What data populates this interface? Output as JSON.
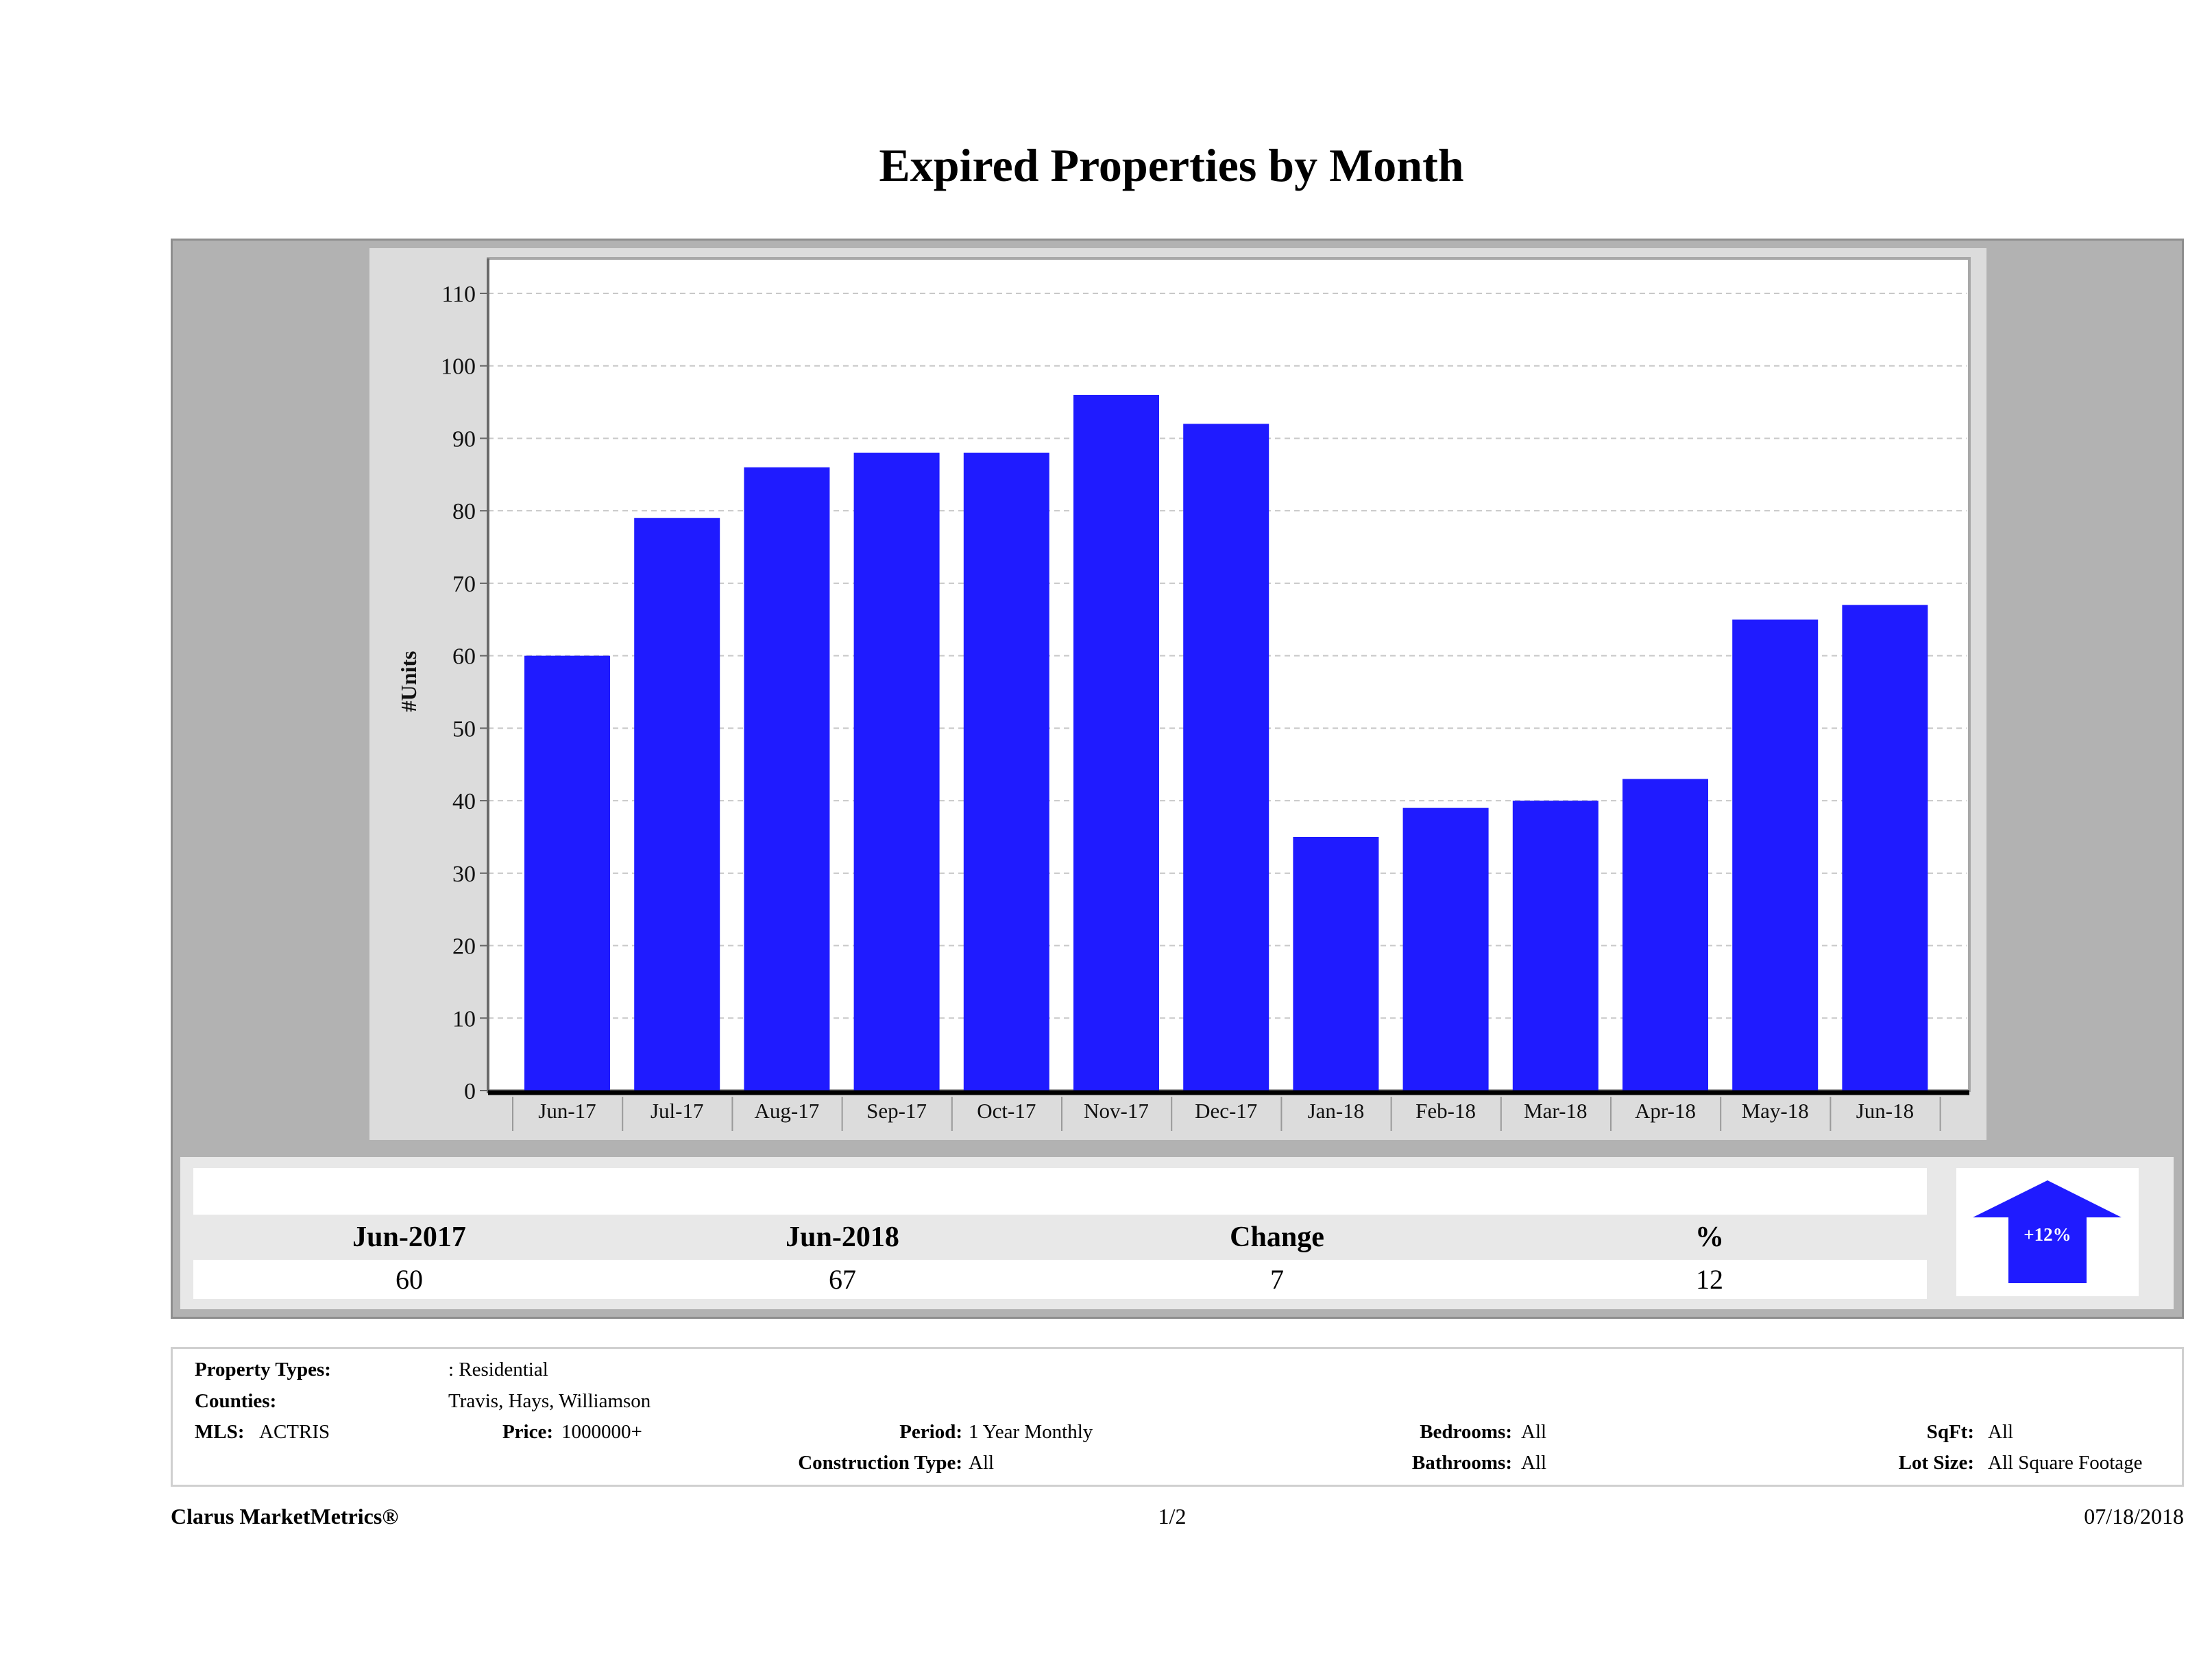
{
  "title": "Expired Properties by Month",
  "colors": {
    "bar": "#1f1bff",
    "outer_panel": "#b2b2b2",
    "chart_bg": "#dcdcdc",
    "plot_bg": "#ffffff",
    "summary_bg": "#e8e8e8",
    "arrow": "#1f1bff"
  },
  "chart_data": {
    "type": "bar",
    "title": "Expired Properties by Month",
    "xlabel": "",
    "ylabel": "#Units",
    "ylim": [
      0,
      115
    ],
    "yticks": [
      0,
      10,
      20,
      30,
      40,
      50,
      60,
      70,
      80,
      90,
      100,
      110
    ],
    "grid": true,
    "categories": [
      "Jun-17",
      "Jul-17",
      "Aug-17",
      "Sep-17",
      "Oct-17",
      "Nov-17",
      "Dec-17",
      "Jan-18",
      "Feb-18",
      "Mar-18",
      "Apr-18",
      "May-18",
      "Jun-18"
    ],
    "values": [
      60,
      79,
      86,
      88,
      88,
      96,
      92,
      35,
      39,
      40,
      43,
      65,
      67
    ]
  },
  "summary": {
    "headers": [
      "Jun-2017",
      "Jun-2018",
      "Change",
      "%"
    ],
    "values": [
      "60",
      "67",
      "7",
      "12"
    ],
    "arrow_label": "+12%",
    "arrow_direction": "up"
  },
  "criteria": {
    "property_types_label": "Property Types:",
    "property_types_value": ": Residential",
    "counties_label": "Counties:",
    "counties_value": "Travis, Hays, Williamson",
    "mls_label": "MLS:",
    "mls_value": "ACTRIS",
    "price_label": "Price:",
    "price_value": "1000000+",
    "period_label": "Period:",
    "period_value": "1 Year Monthly",
    "construction_label": "Construction Type:",
    "construction_value": "All",
    "bedrooms_label": "Bedrooms:",
    "bedrooms_value": "All",
    "bathrooms_label": "Bathrooms:",
    "bathrooms_value": "All",
    "sqft_label": "SqFt:",
    "sqft_value": "All",
    "lotsize_label": "Lot Size:",
    "lotsize_value": "All Square Footage"
  },
  "footer": {
    "brand": "Clarus MarketMetrics®",
    "page": "1/2",
    "date": "07/18/2018"
  }
}
